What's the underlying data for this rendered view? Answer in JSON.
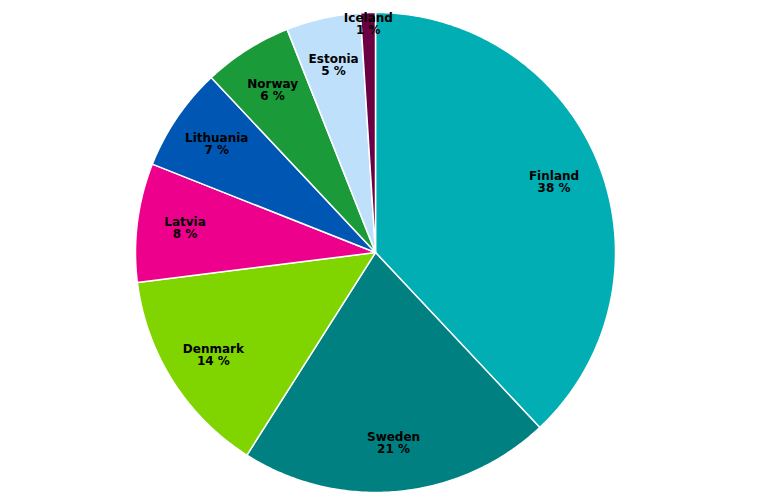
{
  "chart_data": {
    "type": "pie",
    "categories": [
      "Finland",
      "Sweden",
      "Denmark",
      "Latvia",
      "Lithuania",
      "Norway",
      "Estonia",
      "Iceland"
    ],
    "values": [
      38,
      21,
      14,
      8,
      7,
      6,
      5,
      1
    ],
    "value_labels": [
      "38 %",
      "21 %",
      "14 %",
      "8 %",
      "7 %",
      "6 %",
      "5 %",
      "1 %"
    ],
    "colors": [
      "#00aeb3",
      "#008080",
      "#80d400",
      "#ec008c",
      "#0057b3",
      "#1b9a3a",
      "#bfe0fb",
      "#6b0042"
    ],
    "data_labels": true
  }
}
